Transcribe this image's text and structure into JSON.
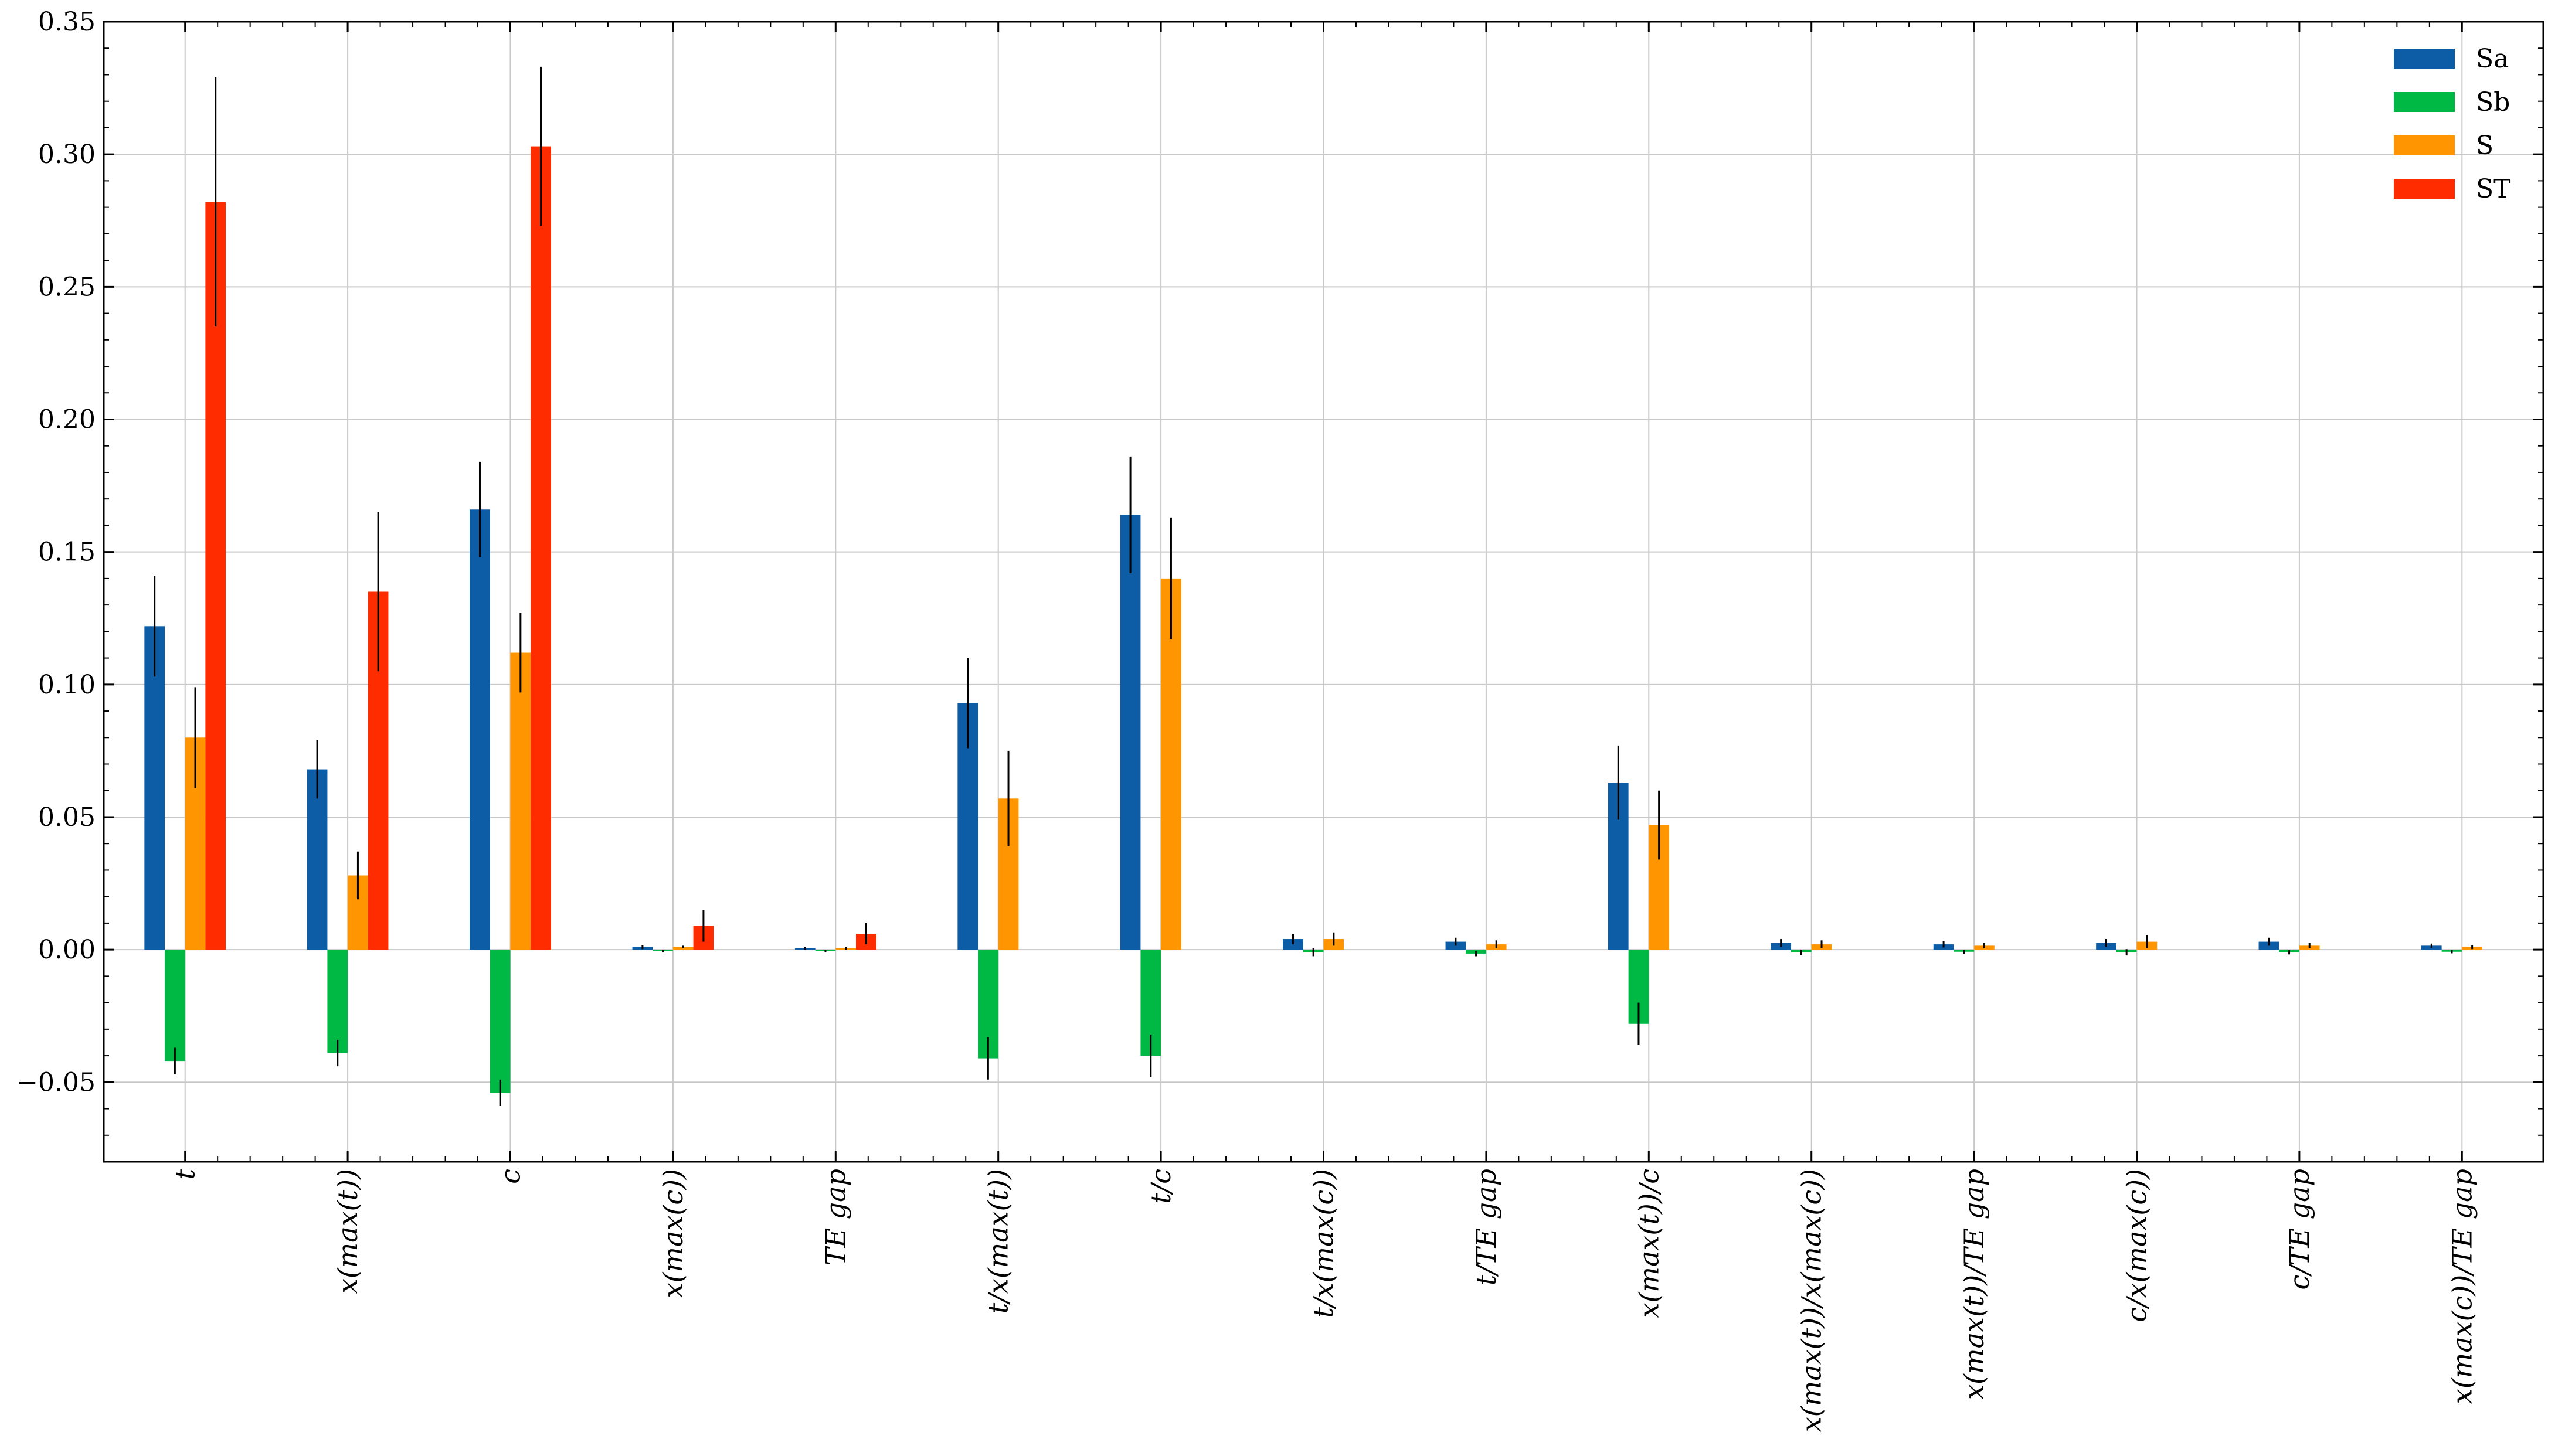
{
  "chart_data": {
    "type": "bar",
    "title": "",
    "xlabel": "",
    "ylabel": "",
    "ylim": [
      -0.08,
      0.35
    ],
    "yticks": [
      "−0.05",
      "0.00",
      "0.05",
      "0.10",
      "0.15",
      "0.20",
      "0.25",
      "0.30",
      "0.35"
    ],
    "ytick_values": [
      -0.05,
      0.0,
      0.05,
      0.1,
      0.15,
      0.2,
      0.25,
      0.3,
      0.35
    ],
    "grid": true,
    "legend_position": "top-right",
    "categories": [
      "t",
      "x(max(t))",
      "c",
      "x(max(c))",
      "TE gap",
      "t/x(max(t))",
      "t/c",
      "t/x(max(c))",
      "t/TE gap",
      "x(max(t))/c",
      "x(max(t))/x(max(c))",
      "x(max(t))/TE gap",
      "c/x(max(c))",
      "c/TE gap",
      "x(max(c))/TE gap"
    ],
    "series": [
      {
        "name": "Sa",
        "color": "#0C5DA5",
        "values": [
          0.122,
          0.068,
          0.166,
          0.001,
          0.0005,
          0.093,
          0.164,
          0.004,
          0.003,
          0.063,
          0.0025,
          0.002,
          0.0025,
          0.003,
          0.0015
        ],
        "errors": [
          0.019,
          0.011,
          0.018,
          0.0008,
          0.0005,
          0.017,
          0.022,
          0.002,
          0.0015,
          0.014,
          0.0015,
          0.0012,
          0.0015,
          0.0015,
          0.0008
        ]
      },
      {
        "name": "Sb",
        "color": "#00B945",
        "values": [
          -0.042,
          -0.039,
          -0.054,
          -0.0005,
          -0.0005,
          -0.041,
          -0.04,
          -0.001,
          -0.0015,
          -0.028,
          -0.001,
          -0.0008,
          -0.001,
          -0.001,
          -0.0008
        ],
        "errors": [
          0.005,
          0.005,
          0.005,
          0.0005,
          0.0005,
          0.008,
          0.008,
          0.0015,
          0.001,
          0.008,
          0.001,
          0.0008,
          0.0012,
          0.0008,
          0.0006
        ]
      },
      {
        "name": "S",
        "color": "#FF9500",
        "values": [
          0.08,
          0.028,
          0.112,
          0.001,
          0.0005,
          0.057,
          0.14,
          0.004,
          0.002,
          0.047,
          0.002,
          0.0015,
          0.003,
          0.0015,
          0.001
        ],
        "errors": [
          0.019,
          0.009,
          0.015,
          0.0005,
          0.0005,
          0.018,
          0.023,
          0.0025,
          0.0015,
          0.013,
          0.0015,
          0.001,
          0.0025,
          0.001,
          0.0008
        ]
      },
      {
        "name": "ST",
        "color": "#FF2C00",
        "values": [
          0.282,
          0.135,
          0.303,
          0.009,
          0.006,
          null,
          null,
          null,
          null,
          null,
          null,
          null,
          null,
          null,
          null
        ],
        "errors": [
          0.047,
          0.03,
          0.03,
          0.006,
          0.004,
          null,
          null,
          null,
          null,
          null,
          null,
          null,
          null,
          null,
          null
        ]
      }
    ]
  }
}
